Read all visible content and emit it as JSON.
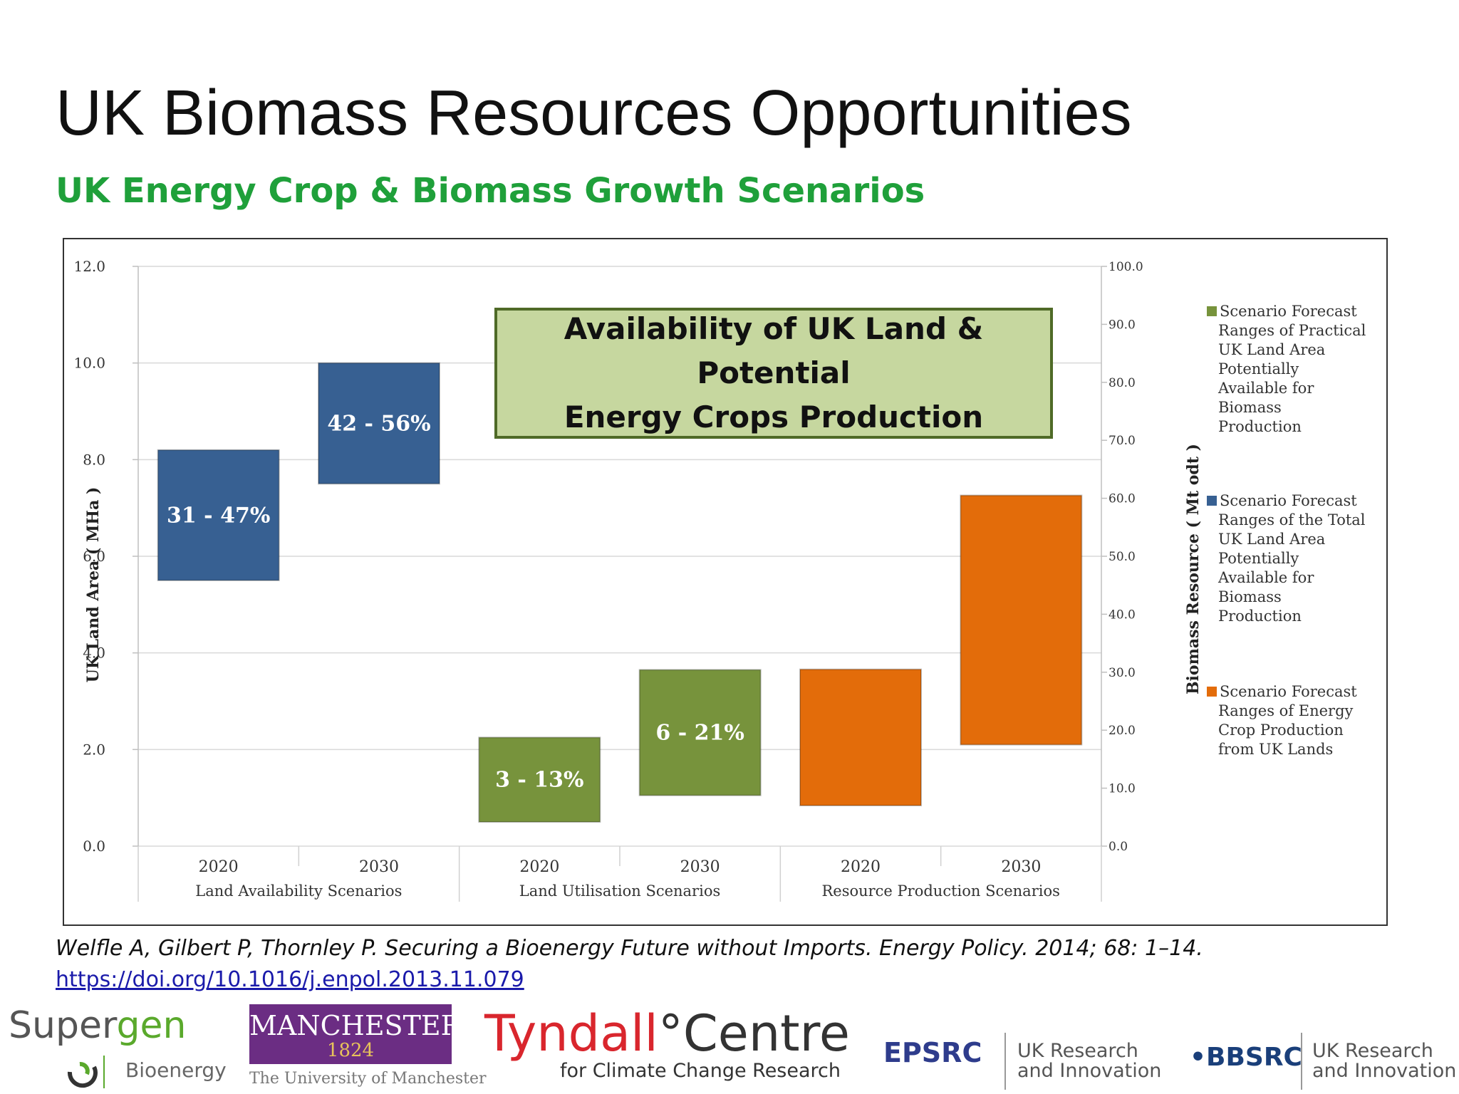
{
  "slide": {
    "title": "UK Biomass Resources Opportunities",
    "subtitle": "UK Energy Crop & Biomass Growth Scenarios"
  },
  "overlay": {
    "line1": "Availability of UK Land & Potential",
    "line2": "Energy Crops Production"
  },
  "citation": {
    "text": "Welfle A, Gilbert P, Thornley P. Securing a Bioenergy Future without Imports. Energy Policy. 2014; 68: 1–14.",
    "link": "https://doi.org/10.1016/j.enpol.2013.11.079"
  },
  "logos": {
    "supergen_word_a": "Super",
    "supergen_word_b": "gen",
    "supergen_sub": "Bioenergy",
    "manchester_name": "MANCHESTER",
    "manchester_year": "1824",
    "manchester_univ": "The University of Manchester",
    "tyndall_a": "Tyndall",
    "tyndall_b": "°Centre",
    "tyndall_sub": "for Climate Change Research",
    "epsrc": "EPSRC",
    "ukri_line1": "UK Research",
    "ukri_line2": "and Innovation",
    "bbsrc": "•BBSRC"
  },
  "chart_data": {
    "type": "bar",
    "subtype": "floating-range",
    "ylabel": "UK Land Area ( MHa )",
    "ylim": [
      0,
      12
    ],
    "yticks": [
      "0.0",
      "2.0",
      "4.0",
      "6.0",
      "8.0",
      "10.0",
      "12.0"
    ],
    "y2label": "Biomass Resource ( Mt odt )",
    "y2lim": [
      0,
      100
    ],
    "y2ticks": [
      "0.0",
      "10.0",
      "20.0",
      "30.0",
      "40.0",
      "50.0",
      "60.0",
      "70.0",
      "80.0",
      "90.0",
      "100.0"
    ],
    "grid": true,
    "legend_position": "right",
    "groups": [
      "Land Availability Scenarios",
      "Land Utilisation Scenarios",
      "Resource Production Scenarios"
    ],
    "categories": [
      "2020",
      "2030",
      "2020",
      "2030",
      "2020",
      "2030"
    ],
    "bars": [
      {
        "group": 0,
        "category": "2020",
        "series": 1,
        "axis": "left",
        "low": 5.5,
        "high": 8.2,
        "label": "31 - 47%"
      },
      {
        "group": 0,
        "category": "2030",
        "series": 1,
        "axis": "left",
        "low": 7.5,
        "high": 10.0,
        "label": "42 - 56%"
      },
      {
        "group": 1,
        "category": "2020",
        "series": 0,
        "axis": "left",
        "low": 0.5,
        "high": 2.25,
        "label": "3 - 13%"
      },
      {
        "group": 1,
        "category": "2030",
        "series": 0,
        "axis": "left",
        "low": 1.05,
        "high": 3.65,
        "label": "6 - 21%"
      },
      {
        "group": 2,
        "category": "2020",
        "series": 2,
        "axis": "right",
        "low": 7.0,
        "high": 30.5,
        "label": ""
      },
      {
        "group": 2,
        "category": "2030",
        "series": 2,
        "axis": "right",
        "low": 17.5,
        "high": 60.5,
        "label": ""
      }
    ],
    "series": [
      {
        "name": "Scenario Forecast Ranges of Practical UK Land Area Potentially Available for Biomass Production",
        "lines": [
          "Scenario Forecast",
          "Ranges of Practical",
          "UK Land Area",
          "Potentially",
          "Available for",
          "Biomass",
          "Production"
        ],
        "color": "#77933c"
      },
      {
        "name": "Scenario Forecast Ranges of the Total UK Land Area Potentially Available for Biomass Production",
        "lines": [
          "Scenario Forecast",
          "Ranges of the Total",
          "UK Land Area",
          "Potentially",
          "Available for",
          "Biomass",
          "Production"
        ],
        "color": "#376092"
      },
      {
        "name": "Scenario Forecast Ranges of Energy Crop Production from UK Lands",
        "lines": [
          "Scenario Forecast",
          "Ranges of Energy",
          "Crop Production",
          "from UK Lands"
        ],
        "color": "#e36c0a"
      }
    ]
  }
}
